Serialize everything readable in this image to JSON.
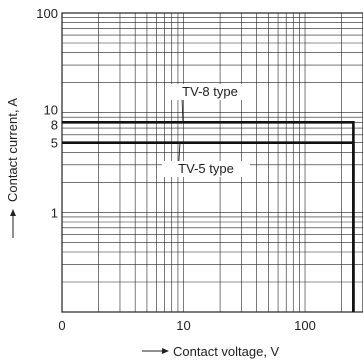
{
  "chart_data": {
    "type": "line",
    "title": "",
    "xlabel": "Contact voltage, V",
    "ylabel": "Contact current, A",
    "xscale": "log",
    "yscale": "log",
    "xlim": [
      1,
      300
    ],
    "ylim": [
      0.1,
      100
    ],
    "grid": true,
    "x_tick_labels": [
      {
        "value": 1,
        "label": "0"
      },
      {
        "value": 10,
        "label": "10"
      },
      {
        "value": 100,
        "label": "100"
      }
    ],
    "y_tick_labels": [
      {
        "value": 1,
        "label": "1"
      },
      {
        "value": 5,
        "label": "5"
      },
      {
        "value": 8,
        "label": "8"
      },
      {
        "value": 10,
        "label": "10"
      },
      {
        "value": 100,
        "label": "100"
      }
    ],
    "series": [
      {
        "name": "TV-8 type",
        "x": [
          1,
          250,
          250
        ],
        "y": [
          8,
          8,
          0.1
        ]
      },
      {
        "name": "TV-5 type",
        "x": [
          1,
          250,
          250
        ],
        "y": [
          5,
          5,
          0.1
        ]
      }
    ]
  }
}
